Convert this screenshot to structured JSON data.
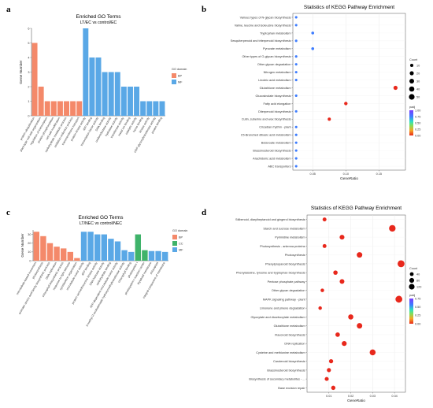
{
  "panel_labels": {
    "a": "a",
    "b": "b",
    "c": "c",
    "d": "d"
  },
  "chart_data": [
    {
      "panel": "a",
      "type": "bar",
      "title": "Enriched GO Terms",
      "subtitle": "LT/EC vs control/EC",
      "ylabel": "Gene Number",
      "ylim": [
        0,
        6
      ],
      "yticks": [
        0,
        1,
        2,
        3,
        4,
        5,
        6
      ],
      "legend": {
        "title": "GO domain",
        "entries": [
          {
            "name": "BP",
            "color": "#f4896a"
          },
          {
            "name": "MF",
            "color": "#5aa8e6"
          }
        ]
      },
      "categories": [
        "protein ubiquitination",
        "plant-type cell wall organization",
        "regulation of transcription",
        "protein phosphorylation",
        "cell wall modification",
        "carbohydrate metabolic process",
        "oxidation-reduction process",
        "transmembrane transport",
        "protein kinase activity",
        "ATP binding",
        "transcription factor activity",
        "DNA binding",
        "oxidoreductase activity",
        "hydrolase activity",
        "transferase activity",
        "metal ion binding",
        "catalytic activity",
        "heme binding",
        "kinase activity",
        "UDP-glycosyltransferase activity",
        "protein binding"
      ],
      "groups": [
        "BP",
        "BP",
        "BP",
        "BP",
        "BP",
        "BP",
        "BP",
        "BP",
        "MF",
        "MF",
        "MF",
        "MF",
        "MF",
        "MF",
        "MF",
        "MF",
        "MF",
        "MF",
        "MF",
        "MF",
        "MF"
      ],
      "values": [
        5,
        2,
        1,
        1,
        1,
        1,
        1,
        1,
        6,
        4,
        4,
        3,
        3,
        3,
        2,
        2,
        2,
        1,
        1,
        1,
        1
      ]
    },
    {
      "panel": "b",
      "type": "scatter",
      "title": "Statistics of KEGG Pathway Enrichment",
      "xlabel": "GeneRatio",
      "xlim": [
        0.02,
        0.19
      ],
      "xticks": [
        0.05,
        0.1,
        0.15
      ],
      "xtick_labels": [
        "0.05",
        "0.10",
        "0.15"
      ],
      "size_legend": {
        "title": "Count",
        "values": [
          10,
          20,
          30,
          40,
          50
        ]
      },
      "color_legend": {
        "title": "padj",
        "ticks": [
          "1.00",
          "0.75",
          "0.50",
          "0.25",
          "0.00"
        ]
      },
      "terms": [
        "Various types of N-glycan biosynthesis",
        "Valine, leucine and isoleucine biosynthesis",
        "Tryptophan metabolism",
        "Sesquiterpenoid and triterpenoid biosynthesis",
        "Pyruvate metabolism",
        "Other types of O-glycan biosynthesis",
        "Other glycan degradation",
        "Nitrogen metabolism",
        "Linoleic acid metabolism",
        "Glutathione metabolism",
        "Glucosinolate biosynthesis",
        "Fatty acid elongation",
        "Diterpenoid biosynthesis",
        "Cutin, suberine and wax biosynthesis",
        "Circadian rhythm - plant",
        "C5-Branched dibasic acid metabolism",
        "Butanoate metabolism",
        "Brassinosteroid biosynthesis",
        "Arachidonic acid metabolism",
        "ABC transporters"
      ],
      "gene_ratio": [
        0.025,
        0.025,
        0.05,
        0.025,
        0.05,
        0.025,
        0.025,
        0.025,
        0.025,
        0.175,
        0.025,
        0.1,
        0.025,
        0.075,
        0.025,
        0.025,
        0.025,
        0.025,
        0.025,
        0.025
      ],
      "count": [
        1,
        1,
        2,
        1,
        2,
        1,
        1,
        1,
        1,
        7,
        1,
        4,
        1,
        3,
        1,
        1,
        1,
        1,
        1,
        1
      ],
      "padj": [
        1,
        1,
        1,
        1,
        1,
        1,
        1,
        1,
        1,
        0.02,
        1,
        0.02,
        1,
        0.02,
        1,
        1,
        1,
        1,
        1,
        1
      ]
    },
    {
      "panel": "c",
      "type": "bar",
      "title": "Enriched GO Terms",
      "subtitle": "LT/NEC vs control/NEC",
      "ylabel": "Gene Number",
      "ylim": [
        0,
        35
      ],
      "yticks": [
        0,
        10,
        20,
        30
      ],
      "legend": {
        "title": "GO domain",
        "entries": [
          {
            "name": "BP",
            "color": "#f4896a"
          },
          {
            "name": "CC",
            "color": "#3fb36a"
          },
          {
            "name": "MF",
            "color": "#5aa8e6"
          }
        ]
      },
      "categories": [
        "microtubule-based movement",
        "photosynthesis",
        "aromatic amino acid family biosynthetic process",
        "DNA replication",
        "chlorophyll biosynthetic process",
        "response to light stimulus",
        "cytoskeleton organization",
        "microtubule motor activity",
        "ATP binding",
        "protein serine/threonine kinase activity",
        "DNA helicase activity",
        "carbohydrate binding",
        "ATP-dependent microtubule motor activity",
        "3-methyl-2-oxobutanoate hydroxymethyltransferase activity",
        "chlorophyll binding",
        "photosystem I",
        "photosystem I reaction center",
        "thylakoid membrane",
        "chloroplast",
        "integral component of membrane"
      ],
      "groups": [
        "BP",
        "BP",
        "BP",
        "BP",
        "BP",
        "BP",
        "BP",
        "MF",
        "MF",
        "MF",
        "MF",
        "MF",
        "MF",
        "MF",
        "MF",
        "CC",
        "CC",
        "MF",
        "MF",
        "MF"
      ],
      "values": [
        33,
        28,
        20,
        16,
        14,
        10,
        3,
        33,
        33,
        30,
        30,
        25,
        22,
        12,
        10,
        30,
        12,
        11,
        11,
        10
      ]
    },
    {
      "panel": "d",
      "type": "scatter",
      "title": "Statistics of KEGG Pathway Enrichment",
      "xlabel": "GeneRatio",
      "xlim": [
        0.0,
        0.045
      ],
      "xticks": [
        0.01,
        0.02,
        0.03,
        0.04
      ],
      "xtick_labels": [
        "0.01",
        "0.02",
        "0.03",
        "0.04"
      ],
      "size_legend": {
        "title": "Count",
        "values": [
          40,
          80,
          120
        ]
      },
      "color_legend": {
        "title": "padj",
        "ticks": [
          "0.75",
          "0.50",
          "0.25",
          "0.00"
        ]
      },
      "terms": [
        "Stilbenoid, diarylheptanoid and gingerol biosynthesis",
        "Starch and sucrose metabolism",
        "Pyrimidine metabolism",
        "Photosynthesis - antenna proteins",
        "Photosynthesis",
        "Phenylpropanoid biosynthesis",
        "Phenylalanine, tyrosine and tryptophan biosynthesis",
        "Pentose phosphate pathway",
        "Other glycan degradation",
        "MAPK signaling pathway - plant",
        "Limonene and pinene degradation",
        "Glyoxylate and dicarboxylate metabolism",
        "Glutathione metabolism",
        "Flavonoid biosynthesis",
        "DNA replication",
        "Cysteine and methionine metabolism",
        "Carotenoid biosynthesis",
        "Brassinosteroid biosynthesis",
        "Biosynthesis of secondary metabolites - ...",
        "Base excision repair"
      ],
      "gene_ratio": [
        0.008,
        0.039,
        0.016,
        0.008,
        0.024,
        0.043,
        0.013,
        0.016,
        0.007,
        0.042,
        0.006,
        0.02,
        0.024,
        0.014,
        0.017,
        0.03,
        0.011,
        0.01,
        0.009,
        0.012
      ],
      "count": [
        20,
        95,
        40,
        20,
        60,
        110,
        30,
        38,
        15,
        105,
        14,
        50,
        58,
        32,
        42,
        72,
        26,
        24,
        22,
        28
      ],
      "padj": [
        0.02,
        0.0,
        0.02,
        0.02,
        0.0,
        0.0,
        0.02,
        0.02,
        0.02,
        0.0,
        0.02,
        0.02,
        0.02,
        0.02,
        0.02,
        0.0,
        0.02,
        0.02,
        0.02,
        0.02
      ]
    }
  ]
}
